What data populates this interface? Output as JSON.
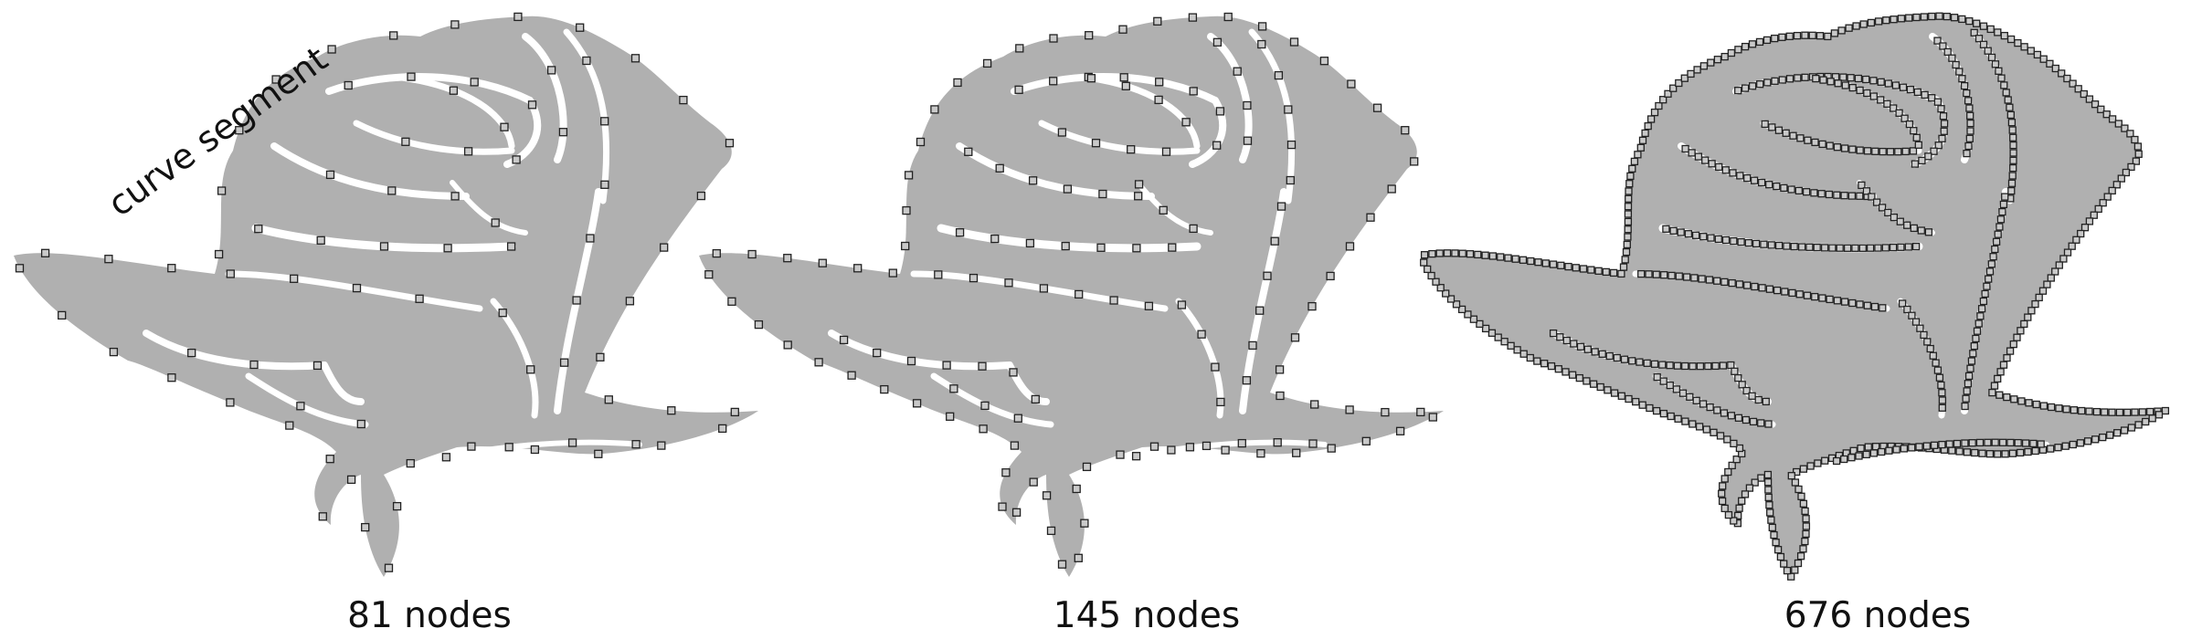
{
  "annotation": "curve segment",
  "panels": [
    {
      "id": "coarse",
      "caption": "81 nodes",
      "node_count": 81
    },
    {
      "id": "medium",
      "caption": "145 nodes",
      "node_count": 145
    },
    {
      "id": "fine",
      "caption": "676 nodes",
      "node_count": 676
    }
  ],
  "colors": {
    "fill": "#b0b0b0",
    "node_fill": "#c9c9c9",
    "node_stroke": "#222222",
    "background": "#ffffff"
  }
}
